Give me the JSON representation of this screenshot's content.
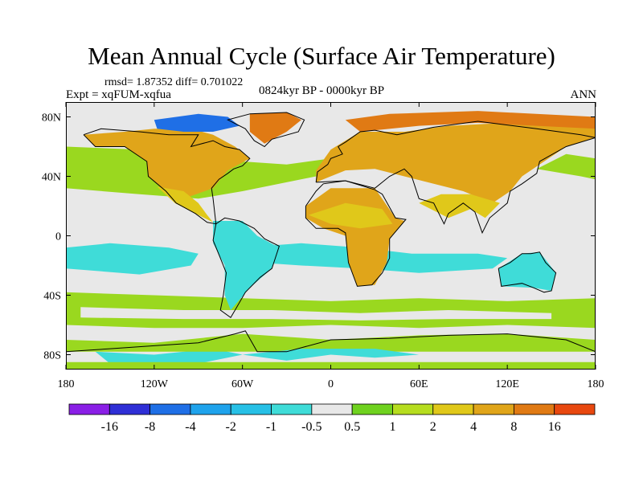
{
  "title": "Mean Annual Cycle (Surface Air Temperature)",
  "stats": "rmsd= 1.87352 diff= 0.701022",
  "expt": "Expt = xqFUM-xqfua",
  "period": "0824kyr BP - 0000kyr BP",
  "season": "ANN",
  "lat_ticks": [
    {
      "label": "80N",
      "lat": 80
    },
    {
      "label": "40N",
      "lat": 40
    },
    {
      "label": "0",
      "lat": 0
    },
    {
      "label": "40S",
      "lat": -40
    },
    {
      "label": "80S",
      "lat": -80
    }
  ],
  "lon_ticks": [
    {
      "label": "180",
      "lon": -180
    },
    {
      "label": "120W",
      "lon": -120
    },
    {
      "label": "60W",
      "lon": -60
    },
    {
      "label": "0",
      "lon": 0
    },
    {
      "label": "60E",
      "lon": 60
    },
    {
      "label": "120E",
      "lon": 120
    },
    {
      "label": "180",
      "lon": 180
    }
  ],
  "colorbar": {
    "colors": [
      "#8a1fe6",
      "#2f2fd6",
      "#1f6fe6",
      "#1fa3ec",
      "#27c0e6",
      "#3fdcd8",
      "#e8e8e8",
      "#6fd21f",
      "#b6dd1f",
      "#e0c81a",
      "#e0a51a",
      "#e07a14",
      "#e8480f"
    ],
    "labels": [
      "-16",
      "-8",
      "-4",
      "-2",
      "-1",
      "-0.5",
      "0.5",
      "1",
      "2",
      "4",
      "8",
      "16"
    ]
  },
  "field_colors": {
    "neutral": "#e8e8e8",
    "ocean_warm": "#9ad81f",
    "ocean_cool": "#3fdcd8",
    "land_warm": "#e0a51a",
    "land_hot": "#e07a14",
    "land_mid": "#e0c81a",
    "ice_cold": "#1f6fe6",
    "coast": "#000000"
  }
}
